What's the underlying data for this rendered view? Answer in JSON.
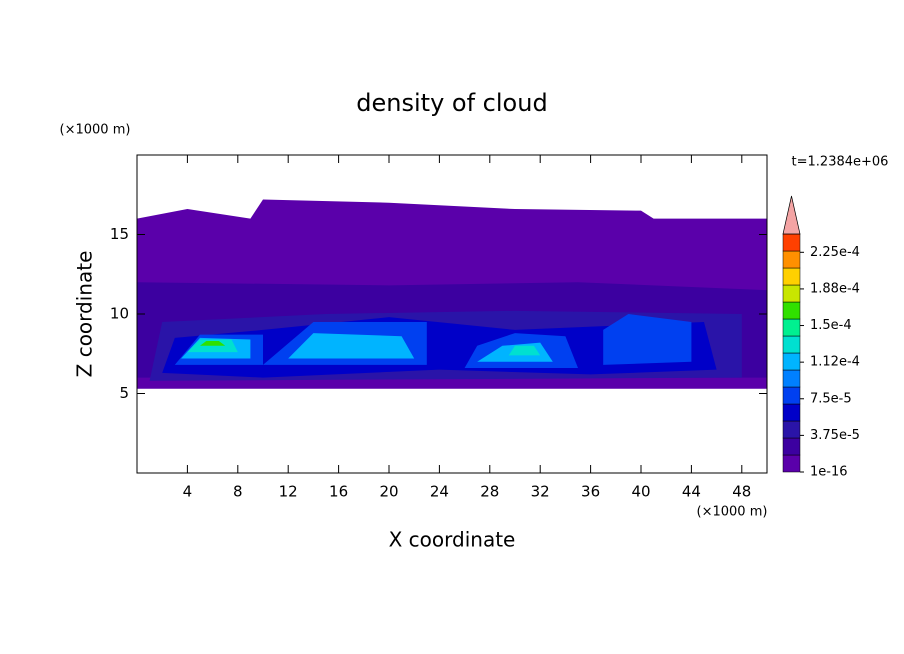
{
  "chart_data": {
    "type": "contour",
    "title": "density of cloud",
    "x_label": "X coordinate",
    "y_label": "Z coordinate",
    "x_unit": "(×1000 m)",
    "y_unit": "(×1000 m)",
    "annotation": "t=1.2384e+06",
    "xlim": [
      0,
      50
    ],
    "xticks": [
      4,
      8,
      12,
      16,
      20,
      24,
      28,
      32,
      36,
      40,
      44,
      48
    ],
    "ylim": [
      0,
      20
    ],
    "yticks": [
      5,
      10,
      15
    ],
    "clim": [
      1e-16,
      0.00024375
    ],
    "colors": [
      "#5a00aa",
      "#3c00a0",
      "#2a14a8",
      "#0000c8",
      "#0040f0",
      "#0080ff",
      "#00b4ff",
      "#00e0d0",
      "#00f090",
      "#30e000",
      "#c8e600",
      "#ffd000",
      "#ff9000",
      "#ff4000"
    ],
    "extend_color": "#f4a4a4",
    "colorbar_ticks": [
      {
        "value": 1e-16,
        "label": "1e-16"
      },
      {
        "value": 3.75e-05,
        "label": "3.75e-5"
      },
      {
        "value": 7.5e-05,
        "label": "7.5e-5"
      },
      {
        "value": 0.0001125,
        "label": "1.12e-4"
      },
      {
        "value": 0.00015,
        "label": "1.5e-4"
      },
      {
        "value": 0.0001875,
        "label": "1.88e-4"
      },
      {
        "value": 0.000225,
        "label": "2.25e-4"
      }
    ],
    "regions": [
      {
        "value": 1e-16,
        "x": [
          0,
          50,
          50,
          41,
          40,
          30,
          20,
          10,
          9,
          4,
          0
        ],
        "z": [
          5.3,
          5.3,
          16,
          16,
          16.5,
          16.6,
          17,
          17.2,
          16,
          16.6,
          16
        ]
      },
      {
        "value": 2e-05,
        "x": [
          0,
          50,
          50,
          35,
          20,
          0
        ],
        "z": [
          6,
          6,
          11.5,
          12,
          11.8,
          12
        ]
      },
      {
        "value": 4e-05,
        "x": [
          1,
          48,
          48,
          30,
          15,
          2
        ],
        "z": [
          5.8,
          6,
          10,
          10.2,
          10,
          9.5
        ]
      },
      {
        "value": 6e-05,
        "x": [
          2,
          10,
          24,
          36,
          46,
          45,
          30,
          20,
          10,
          3
        ],
        "z": [
          6.3,
          6,
          6.5,
          6.2,
          6.5,
          9.5,
          9,
          9.8,
          9,
          8.5
        ]
      },
      {
        "value": 8e-05,
        "x": [
          3,
          10,
          10,
          5
        ],
        "z": [
          6.8,
          6.8,
          8.7,
          8.7
        ]
      },
      {
        "value": 8e-05,
        "x": [
          10,
          23,
          23,
          14
        ],
        "z": [
          6.8,
          6.8,
          9.5,
          9.5
        ]
      },
      {
        "value": 8e-05,
        "x": [
          26,
          35,
          34,
          30,
          27
        ],
        "z": [
          6.6,
          6.6,
          8.6,
          8.8,
          8
        ]
      },
      {
        "value": 8e-05,
        "x": [
          37,
          44,
          44,
          39,
          37
        ],
        "z": [
          6.8,
          7,
          9.5,
          10,
          9
        ]
      },
      {
        "value": 0.00011,
        "x": [
          3.5,
          9,
          9,
          5
        ],
        "z": [
          7.2,
          7.2,
          8.4,
          8.5
        ]
      },
      {
        "value": 0.00011,
        "x": [
          12,
          22,
          21,
          14
        ],
        "z": [
          7.2,
          7.2,
          8.6,
          8.8
        ]
      },
      {
        "value": 0.00011,
        "x": [
          27,
          33,
          32,
          29
        ],
        "z": [
          7,
          7,
          8.2,
          8
        ]
      },
      {
        "value": 0.00013,
        "x": [
          4,
          8,
          7.5,
          5
        ],
        "z": [
          7.6,
          7.6,
          8.4,
          8.4
        ]
      },
      {
        "value": 0.00013,
        "x": [
          29.5,
          32,
          31.5,
          30
        ],
        "z": [
          7.4,
          7.4,
          8,
          8
        ]
      },
      {
        "value": 0.00016,
        "x": [
          5,
          7,
          6.5,
          5.5
        ],
        "z": [
          8,
          8,
          8.3,
          8.3
        ]
      }
    ]
  }
}
